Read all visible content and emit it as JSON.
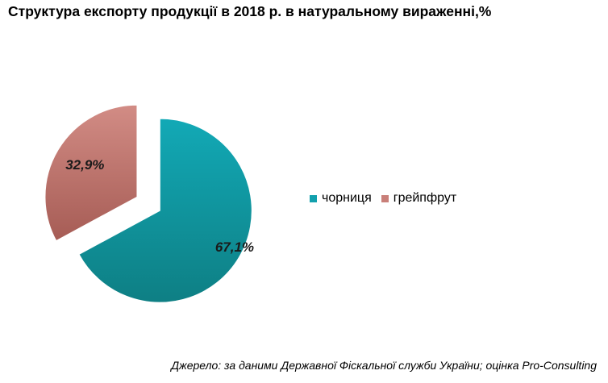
{
  "chart_data": {
    "type": "pie",
    "title": "Структура експорту продукції в 2018 р. в натуральному вираженні,%",
    "categories": [
      "чорниця",
      "грейпфрут"
    ],
    "values": [
      67.1,
      32.9
    ],
    "labels": [
      "67,1%",
      "32,9%"
    ],
    "colors": [
      "#12a0ad",
      "#c97f79"
    ],
    "exploded": true,
    "legend_position": "right",
    "data_labels": "inside"
  },
  "source_note": "Джерело: за даними Державної Фіскальної служби України; оцінка Pro-Consulting"
}
